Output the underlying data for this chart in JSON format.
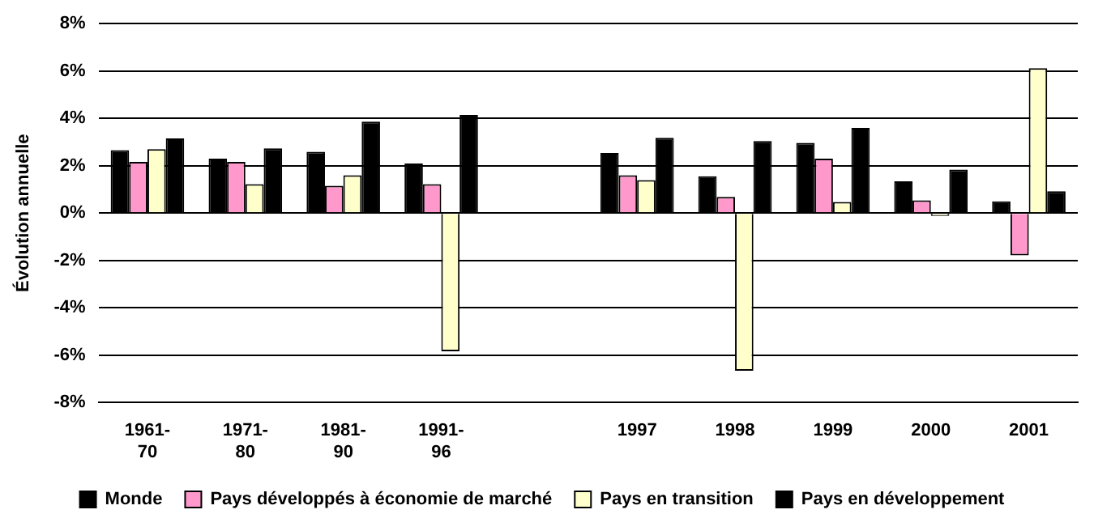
{
  "chart_data": {
    "type": "bar",
    "ylabel": "Évolution annuelle",
    "categories": [
      "1961-70",
      "1971-80",
      "1981-90",
      "1991-96",
      null,
      "1997",
      "1998",
      "1999",
      "2000",
      "2001"
    ],
    "series": [
      {
        "name": "Monde",
        "color": "#000000",
        "values": [
          2.66,
          2.3,
          2.59,
          2.09,
          null,
          2.54,
          1.55,
          2.96,
          1.34,
          0.49
        ]
      },
      {
        "name": "Pays développés à économie de marché",
        "color": "#ff99cc",
        "values": [
          2.16,
          2.16,
          1.15,
          1.22,
          null,
          1.6,
          0.68,
          2.3,
          0.54,
          -1.79
        ]
      },
      {
        "name": "Pays en transition",
        "color": "#ffffcc",
        "values": [
          2.7,
          1.22,
          1.6,
          -5.84,
          null,
          1.39,
          -6.66,
          0.47,
          -0.12,
          6.12
        ]
      },
      {
        "name": "Pays en développement",
        "color": "#000000",
        "values": [
          3.15,
          2.73,
          3.86,
          4.14,
          null,
          3.18,
          3.04,
          3.6,
          1.84,
          0.92
        ]
      }
    ],
    "ylim": [
      -8,
      8
    ],
    "yticks": [
      {
        "value": -8,
        "label": "-8%"
      },
      {
        "value": -6,
        "label": "-6%"
      },
      {
        "value": -4,
        "label": "-4%"
      },
      {
        "value": -2,
        "label": "-2%"
      },
      {
        "value": 0,
        "label": "0%"
      },
      {
        "value": 2,
        "label": "2%"
      },
      {
        "value": 4,
        "label": "4%"
      },
      {
        "value": 6,
        "label": "6%"
      },
      {
        "value": 8,
        "label": "8%"
      }
    ],
    "grid": "y",
    "legend": "bottom"
  }
}
